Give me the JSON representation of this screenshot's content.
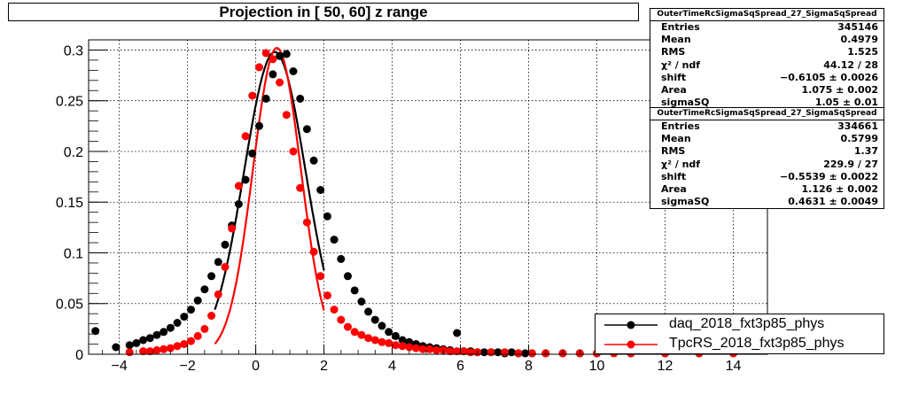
{
  "header": {
    "title": "Projection in [  50,  60] z range"
  },
  "stats": [
    {
      "title": "OuterTimeRcSigmaSqSpread_27_SigmaSqSpread",
      "rows": [
        {
          "key": "Entries",
          "val": "345146"
        },
        {
          "key": "Mean",
          "val": "0.4979"
        },
        {
          "key": "RMS",
          "val": "1.525"
        },
        {
          "key": "χ² / ndf",
          "val": "44.12 / 28"
        },
        {
          "key": "shift",
          "val": "−0.6105 ± 0.0026"
        },
        {
          "key": "Area",
          "val": "1.075 ± 0.002"
        },
        {
          "key": "sigmaSQ",
          "val": "1.05 ± 0.01"
        }
      ]
    },
    {
      "title": "OuterTimeRcSigmaSqSpread_27_SigmaSqSpread",
      "rows": [
        {
          "key": "Entries",
          "val": "334661"
        },
        {
          "key": "Mean",
          "val": "0.5799"
        },
        {
          "key": "RMS",
          "val": "1.37"
        },
        {
          "key": "χ² / ndf",
          "val": "229.9 / 27"
        },
        {
          "key": "shift",
          "val": "−0.5539 ± 0.0022"
        },
        {
          "key": "Area",
          "val": "1.126 ± 0.002"
        },
        {
          "key": "sigmaSQ",
          "val": "0.4631 ± 0.0049"
        }
      ]
    }
  ],
  "chart_data": {
    "type": "scatter",
    "title": "Projection in [  50,  60] z range",
    "xlim": [
      -4.9,
      15.0
    ],
    "ylim": [
      0,
      0.31
    ],
    "grid": true,
    "legend_position": "bottom-right",
    "x_ticks": [
      -4,
      -2,
      0,
      2,
      4,
      6,
      8,
      10,
      12,
      14
    ],
    "x_tick_labels": [
      "−4",
      "−2",
      "0",
      "2",
      "4",
      "6",
      "8",
      "10",
      "12",
      "14"
    ],
    "y_ticks": [
      0,
      0.05,
      0.1,
      0.15,
      0.2,
      0.25,
      0.3
    ],
    "y_tick_labels": [
      "0",
      "0.05",
      "0.1",
      "0.15",
      "0.2",
      "0.25",
      "0.3"
    ],
    "series": [
      {
        "name": "daq_2018_fxt3p85_phys",
        "color": "#000000",
        "x": [
          -4.7,
          -4.1,
          -3.7,
          -3.5,
          -3.3,
          -3.1,
          -2.9,
          -2.7,
          -2.5,
          -2.3,
          -2.1,
          -1.9,
          -1.7,
          -1.5,
          -1.3,
          -1.1,
          -0.9,
          -0.7,
          -0.5,
          -0.3,
          -0.1,
          0.1,
          0.3,
          0.5,
          0.7,
          0.9,
          1.1,
          1.3,
          1.5,
          1.7,
          1.9,
          2.1,
          2.3,
          2.5,
          2.7,
          2.9,
          3.1,
          3.3,
          3.5,
          3.7,
          3.9,
          4.1,
          4.3,
          4.5,
          4.7,
          4.9,
          5.1,
          5.3,
          5.5,
          5.7,
          5.9,
          6.1,
          6.3,
          6.5,
          6.7,
          6.9,
          7.1,
          7.3,
          7.5,
          7.7,
          7.9,
          8.1,
          8.5,
          9.0,
          9.5,
          10.0,
          11.0,
          12.0,
          13.0,
          14.0
        ],
        "y": [
          0.023,
          0.007,
          0.009,
          0.011,
          0.014,
          0.016,
          0.019,
          0.022,
          0.026,
          0.031,
          0.037,
          0.044,
          0.053,
          0.064,
          0.077,
          0.091,
          0.108,
          0.127,
          0.148,
          0.172,
          0.198,
          0.225,
          0.252,
          0.276,
          0.294,
          0.296,
          0.279,
          0.252,
          0.222,
          0.191,
          0.162,
          0.136,
          0.113,
          0.094,
          0.077,
          0.063,
          0.052,
          0.042,
          0.034,
          0.028,
          0.022,
          0.018,
          0.014,
          0.012,
          0.01,
          0.008,
          0.007,
          0.006,
          0.005,
          0.004,
          0.021,
          0.003,
          0.003,
          0.002,
          0.002,
          0.002,
          0.002,
          0.001,
          0.002,
          0.001,
          0.001,
          0.001,
          0.001,
          0.001,
          0.001,
          0.001,
          0.001,
          0.001,
          0.001,
          0.001
        ]
      },
      {
        "name": "TpcRS_2018_fxt3p85_phys",
        "color": "#ff0000",
        "x": [
          -3.7,
          -3.3,
          -3.1,
          -2.9,
          -2.7,
          -2.5,
          -2.3,
          -2.1,
          -1.9,
          -1.7,
          -1.5,
          -1.3,
          -1.1,
          -0.9,
          -0.7,
          -0.5,
          -0.3,
          -0.1,
          0.1,
          0.3,
          0.5,
          0.7,
          0.9,
          1.1,
          1.3,
          1.5,
          1.7,
          1.9,
          2.1,
          2.3,
          2.5,
          2.7,
          2.9,
          3.1,
          3.3,
          3.5,
          3.7,
          3.9,
          4.1,
          4.3,
          4.5,
          4.7,
          4.9,
          5.1,
          5.3,
          5.5,
          5.7,
          5.9,
          6.1,
          6.3,
          6.5,
          6.9,
          7.3,
          7.7,
          8.1,
          8.5,
          9.0,
          9.5,
          10.0,
          10.5,
          11.0,
          12.0,
          13.0,
          14.0
        ],
        "y": [
          0.002,
          0.003,
          0.003,
          0.004,
          0.005,
          0.006,
          0.008,
          0.01,
          0.013,
          0.018,
          0.025,
          0.038,
          0.059,
          0.086,
          0.124,
          0.166,
          0.215,
          0.255,
          0.283,
          0.297,
          0.291,
          0.268,
          0.236,
          0.2,
          0.164,
          0.13,
          0.101,
          0.077,
          0.058,
          0.044,
          0.034,
          0.027,
          0.022,
          0.019,
          0.016,
          0.014,
          0.012,
          0.011,
          0.009,
          0.008,
          0.007,
          0.006,
          0.005,
          0.005,
          0.004,
          0.004,
          0.003,
          0.003,
          0.003,
          0.002,
          0.002,
          0.002,
          0.002,
          0.001,
          0.001,
          0.001,
          0.001,
          0.001,
          0.001,
          0.001,
          0.001,
          0.001,
          0.001,
          0.001
        ]
      }
    ],
    "fits": [
      {
        "color": "#000000",
        "center": 0.56,
        "sigma": 0.9,
        "peak": 0.298,
        "xrange": [
          -1.2,
          2.0
        ]
      },
      {
        "color": "#ff0000",
        "center": 0.62,
        "sigma": 0.7,
        "peak": 0.302,
        "xrange": [
          -1.2,
          2.0
        ]
      }
    ]
  }
}
